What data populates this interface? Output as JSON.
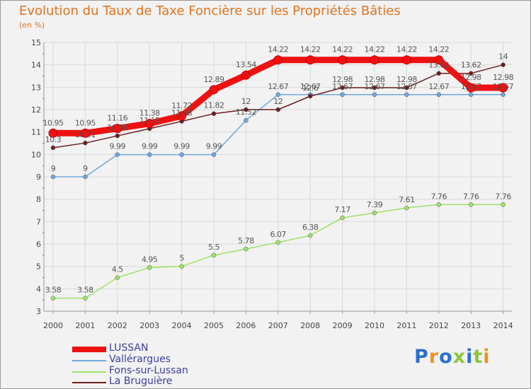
{
  "title": "Evolution du Taux de Taxe Foncière sur les Propriétés Bâties",
  "unit_label": "(en %)",
  "logo": {
    "text": "Proxiti",
    "colors": [
      "#2a6fd0",
      "#e8961f",
      "#2a6fd0",
      "#8cc63f",
      "#2a6fd0",
      "#8cc63f",
      "#e8961f"
    ]
  },
  "chart_data": {
    "type": "line",
    "x": [
      "2000",
      "2001",
      "2002",
      "2003",
      "2004",
      "2005",
      "2006",
      "2007",
      "2008",
      "2009",
      "2010",
      "2011",
      "2012",
      "2013",
      "2014"
    ],
    "ylim": [
      3,
      15
    ],
    "yticks": [
      "3",
      "4",
      "5",
      "6",
      "7",
      "8",
      "9",
      "10",
      "11",
      "12",
      "13",
      "14",
      "15"
    ],
    "grid": true,
    "legend_position": "bottom-left",
    "series": [
      {
        "name": "LUSSAN",
        "color": "#ee1111",
        "values": [
          10.95,
          10.95,
          11.16,
          11.38,
          11.72,
          12.89,
          13.54,
          14.22,
          14.22,
          14.22,
          14.22,
          14.22,
          14.22,
          12.98,
          12.98
        ]
      },
      {
        "name": "Vallérargues",
        "color": "#6fa8dc",
        "values": [
          9,
          9,
          9.99,
          9.99,
          9.99,
          9.99,
          11.52,
          12.67,
          12.67,
          12.67,
          12.67,
          12.67,
          12.67,
          12.67,
          12.67
        ]
      },
      {
        "name": "Fons-sur-Lussan",
        "color": "#9ee26a",
        "values": [
          3.58,
          3.58,
          4.5,
          4.95,
          5,
          5.5,
          5.78,
          6.07,
          6.38,
          7.17,
          7.39,
          7.61,
          7.76,
          7.76,
          7.76
        ]
      },
      {
        "name": "La Bruguière",
        "color": "#6b1f1f",
        "values": [
          10.3,
          10.51,
          10.83,
          11.15,
          11.48,
          11.82,
          12,
          12,
          12.6,
          12.98,
          12.98,
          12.98,
          13.62,
          13.62,
          14
        ]
      }
    ]
  }
}
